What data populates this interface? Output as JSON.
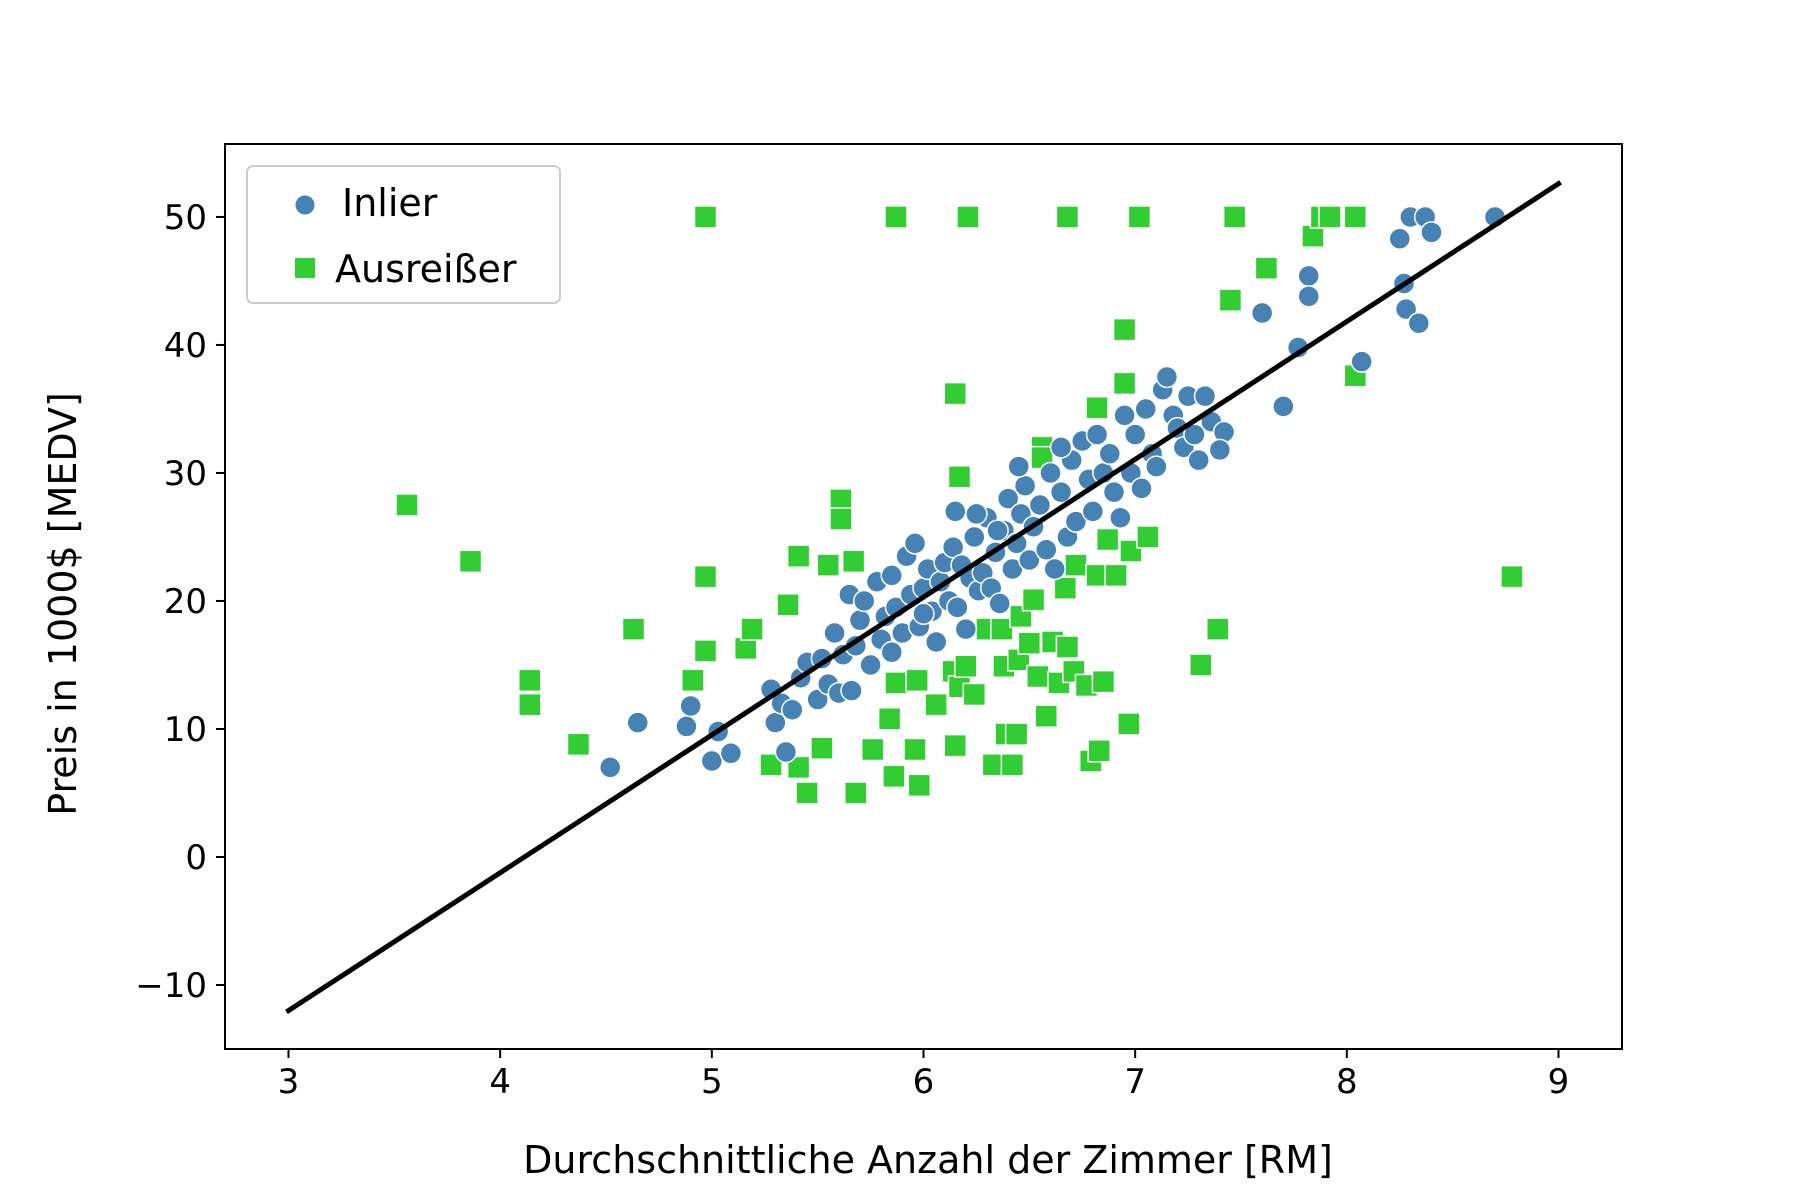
{
  "chart_data": {
    "type": "scatter",
    "xlabel": "Durchschnittliche Anzahl der Zimmer [RM]",
    "ylabel": "Preis in 1000$ [MEDV]",
    "xlim": [
      2.7,
      9.3
    ],
    "ylim": [
      -15,
      55.7
    ],
    "xticks": [
      3,
      4,
      5,
      6,
      7,
      8,
      9
    ],
    "yticks": [
      -10,
      0,
      10,
      20,
      30,
      40,
      50
    ],
    "xtick_labels": [
      "3",
      "4",
      "5",
      "6",
      "7",
      "8",
      "9"
    ],
    "ytick_labels": [
      "−10",
      "0",
      "10",
      "20",
      "30",
      "40",
      "50"
    ],
    "grid": false,
    "legend_position": "top-left",
    "colors": {
      "inlier": "#4682b4",
      "outlier": "#32cd32",
      "line": "#000000"
    },
    "fit_line": {
      "x": [
        3.0,
        9.0
      ],
      "y": [
        -12.0,
        52.6
      ]
    },
    "series": [
      {
        "name": "Inlier",
        "marker": "circle",
        "points": [
          [
            4.52,
            7.0
          ],
          [
            4.65,
            10.5
          ],
          [
            4.88,
            10.2
          ],
          [
            4.9,
            11.8
          ],
          [
            5.0,
            7.5
          ],
          [
            5.03,
            9.8
          ],
          [
            5.09,
            8.1
          ],
          [
            5.28,
            13.1
          ],
          [
            5.3,
            10.5
          ],
          [
            5.33,
            12.0
          ],
          [
            5.35,
            8.2
          ],
          [
            5.38,
            11.5
          ],
          [
            5.42,
            14.0
          ],
          [
            5.45,
            15.2
          ],
          [
            5.5,
            12.3
          ],
          [
            5.52,
            15.5
          ],
          [
            5.55,
            13.5
          ],
          [
            5.58,
            17.5
          ],
          [
            5.6,
            12.8
          ],
          [
            5.62,
            15.8
          ],
          [
            5.65,
            20.5
          ],
          [
            5.66,
            13.0
          ],
          [
            5.68,
            16.5
          ],
          [
            5.7,
            18.5
          ],
          [
            5.72,
            20.0
          ],
          [
            5.75,
            15.0
          ],
          [
            5.78,
            21.5
          ],
          [
            5.8,
            17.0
          ],
          [
            5.82,
            18.8
          ],
          [
            5.85,
            22.0
          ],
          [
            5.87,
            19.5
          ],
          [
            5.9,
            17.5
          ],
          [
            5.92,
            23.5
          ],
          [
            5.94,
            20.5
          ],
          [
            5.96,
            24.5
          ],
          [
            5.98,
            18.0
          ],
          [
            6.0,
            21.0
          ],
          [
            6.02,
            22.5
          ],
          [
            6.04,
            19.2
          ],
          [
            6.06,
            16.8
          ],
          [
            6.08,
            21.5
          ],
          [
            6.1,
            23.0
          ],
          [
            6.12,
            20.0
          ],
          [
            6.14,
            24.2
          ],
          [
            6.16,
            19.5
          ],
          [
            6.18,
            22.8
          ],
          [
            6.2,
            17.8
          ],
          [
            6.22,
            21.8
          ],
          [
            6.24,
            25.0
          ],
          [
            6.26,
            20.8
          ],
          [
            6.28,
            22.2
          ],
          [
            6.3,
            26.5
          ],
          [
            6.32,
            21.0
          ],
          [
            6.34,
            23.8
          ],
          [
            6.36,
            19.8
          ],
          [
            6.38,
            25.5
          ],
          [
            6.4,
            28.0
          ],
          [
            6.42,
            22.5
          ],
          [
            6.44,
            24.5
          ],
          [
            6.46,
            26.8
          ],
          [
            6.48,
            29.0
          ],
          [
            6.5,
            23.2
          ],
          [
            6.52,
            25.8
          ],
          [
            6.55,
            27.5
          ],
          [
            6.58,
            24.0
          ],
          [
            6.6,
            30.0
          ],
          [
            6.62,
            22.5
          ],
          [
            6.65,
            28.5
          ],
          [
            6.68,
            25.0
          ],
          [
            6.7,
            31.0
          ],
          [
            6.72,
            26.2
          ],
          [
            6.75,
            32.5
          ],
          [
            6.78,
            29.5
          ],
          [
            6.8,
            27.0
          ],
          [
            6.82,
            33.0
          ],
          [
            6.85,
            30.0
          ],
          [
            6.88,
            31.5
          ],
          [
            6.9,
            28.5
          ],
          [
            6.93,
            26.5
          ],
          [
            6.95,
            34.5
          ],
          [
            6.98,
            30.0
          ],
          [
            7.0,
            33.0
          ],
          [
            7.03,
            28.8
          ],
          [
            7.05,
            35.0
          ],
          [
            7.08,
            31.5
          ],
          [
            7.1,
            30.5
          ],
          [
            7.13,
            36.5
          ],
          [
            7.15,
            37.5
          ],
          [
            7.18,
            34.5
          ],
          [
            7.2,
            33.5
          ],
          [
            7.23,
            32.0
          ],
          [
            7.25,
            36.0
          ],
          [
            7.28,
            33.0
          ],
          [
            7.3,
            31.0
          ],
          [
            7.33,
            36.0
          ],
          [
            7.36,
            34.0
          ],
          [
            7.42,
            33.2
          ],
          [
            7.4,
            31.8
          ],
          [
            6.35,
            25.5
          ],
          [
            6.0,
            19.0
          ],
          [
            5.85,
            16.0
          ],
          [
            6.15,
            27.0
          ],
          [
            6.25,
            26.8
          ],
          [
            6.45,
            30.5
          ],
          [
            6.65,
            32.0
          ],
          [
            7.6,
            42.5
          ],
          [
            7.7,
            35.2
          ],
          [
            7.77,
            39.8
          ],
          [
            7.82,
            45.4
          ],
          [
            7.82,
            43.8
          ],
          [
            8.07,
            38.7
          ],
          [
            8.25,
            48.3
          ],
          [
            8.27,
            44.8
          ],
          [
            8.28,
            42.8
          ],
          [
            8.3,
            50.0
          ],
          [
            8.34,
            41.7
          ],
          [
            8.37,
            50.0
          ],
          [
            8.4,
            48.8
          ],
          [
            8.7,
            50.0
          ]
        ]
      },
      {
        "name": "Ausreißer",
        "marker": "square",
        "points": [
          [
            3.56,
            27.5
          ],
          [
            3.86,
            23.1
          ],
          [
            4.14,
            13.8
          ],
          [
            4.14,
            11.9
          ],
          [
            4.37,
            8.8
          ],
          [
            4.63,
            17.8
          ],
          [
            4.91,
            13.8
          ],
          [
            4.97,
            16.1
          ],
          [
            4.97,
            21.9
          ],
          [
            4.97,
            50.0
          ],
          [
            5.16,
            16.3
          ],
          [
            5.19,
            17.8
          ],
          [
            5.28,
            7.2
          ],
          [
            5.36,
            19.7
          ],
          [
            5.41,
            23.5
          ],
          [
            5.41,
            7.0
          ],
          [
            5.45,
            5.0
          ],
          [
            5.52,
            8.5
          ],
          [
            5.55,
            22.8
          ],
          [
            5.61,
            27.9
          ],
          [
            5.61,
            26.4
          ],
          [
            5.67,
            23.1
          ],
          [
            5.68,
            5.0
          ],
          [
            5.76,
            8.4
          ],
          [
            5.84,
            10.8
          ],
          [
            5.86,
            6.3
          ],
          [
            5.87,
            13.6
          ],
          [
            5.87,
            50.0
          ],
          [
            5.96,
            8.4
          ],
          [
            5.97,
            13.8
          ],
          [
            5.98,
            5.6
          ],
          [
            6.06,
            11.9
          ],
          [
            6.14,
            14.5
          ],
          [
            6.15,
            8.7
          ],
          [
            6.15,
            36.2
          ],
          [
            6.17,
            29.7
          ],
          [
            6.17,
            13.3
          ],
          [
            6.2,
            14.9
          ],
          [
            6.21,
            50.0
          ],
          [
            6.24,
            12.7
          ],
          [
            6.3,
            17.8
          ],
          [
            6.33,
            7.2
          ],
          [
            6.37,
            17.8
          ],
          [
            6.38,
            14.9
          ],
          [
            6.39,
            9.6
          ],
          [
            6.42,
            7.2
          ],
          [
            6.44,
            9.6
          ],
          [
            6.45,
            15.4
          ],
          [
            6.46,
            18.8
          ],
          [
            6.5,
            16.7
          ],
          [
            6.52,
            20.1
          ],
          [
            6.54,
            14.1
          ],
          [
            6.56,
            32.0
          ],
          [
            6.56,
            31.2
          ],
          [
            6.58,
            11.0
          ],
          [
            6.61,
            16.8
          ],
          [
            6.64,
            13.6
          ],
          [
            6.67,
            21.0
          ],
          [
            6.68,
            16.4
          ],
          [
            6.68,
            50.0
          ],
          [
            6.71,
            14.5
          ],
          [
            6.72,
            22.8
          ],
          [
            6.77,
            13.4
          ],
          [
            6.79,
            7.5
          ],
          [
            6.82,
            22.0
          ],
          [
            6.82,
            35.1
          ],
          [
            6.83,
            8.3
          ],
          [
            6.85,
            13.7
          ],
          [
            6.87,
            24.8
          ],
          [
            6.91,
            22.0
          ],
          [
            6.95,
            37.0
          ],
          [
            6.97,
            10.4
          ],
          [
            6.98,
            23.9
          ],
          [
            7.02,
            50.0
          ],
          [
            7.06,
            25.0
          ],
          [
            7.31,
            15.0
          ],
          [
            7.39,
            17.8
          ],
          [
            7.47,
            50.0
          ],
          [
            7.45,
            43.5
          ],
          [
            7.62,
            46.0
          ],
          [
            7.84,
            48.5
          ],
          [
            7.88,
            50.0
          ],
          [
            7.92,
            50.0
          ],
          [
            8.04,
            50.0
          ],
          [
            8.04,
            37.6
          ],
          [
            8.78,
            21.9
          ],
          [
            6.95,
            41.2
          ]
        ]
      }
    ]
  }
}
